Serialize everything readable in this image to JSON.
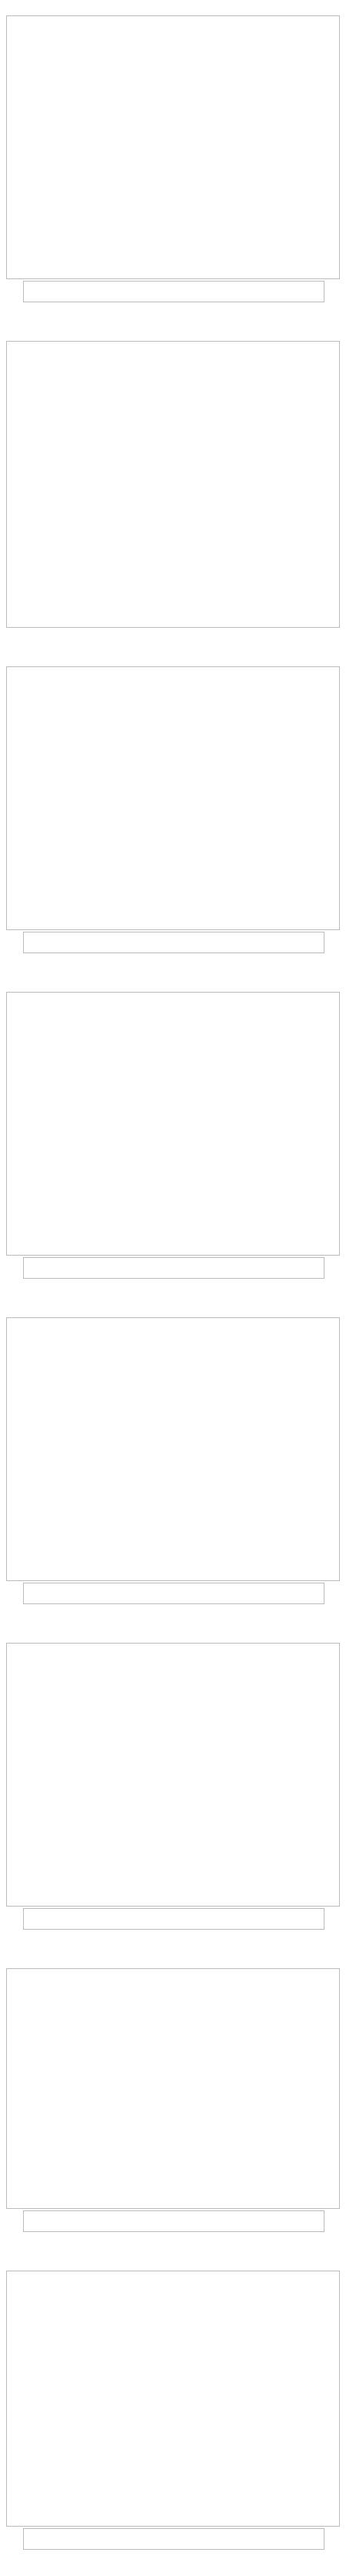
{
  "sections": [
    {
      "id": "g1",
      "heading": "",
      "note": ""
    },
    {
      "id": "g2",
      "heading": "",
      "note": ""
    },
    {
      "id": "g3",
      "heading": "",
      "note": ""
    },
    {
      "id": "g4",
      "heading": "",
      "note": ""
    },
    {
      "id": "g5",
      "heading": "",
      "note": ""
    },
    {
      "id": "g6",
      "heading": "",
      "note": ""
    },
    {
      "id": "g7",
      "heading": "",
      "note": ""
    },
    {
      "id": "g8",
      "heading": "",
      "note": ""
    }
  ],
  "colors": {
    "light-blue": "#bfe3f0",
    "pink": "#f29ac8",
    "orange": "#f5b36a",
    "green": "#8fd16f",
    "yellow": "#f2ec6a",
    "purple": "#c86ad9",
    "blue": "#6aa9e6",
    "gray": "#cfcfcf"
  },
  "chart_data": []
}
